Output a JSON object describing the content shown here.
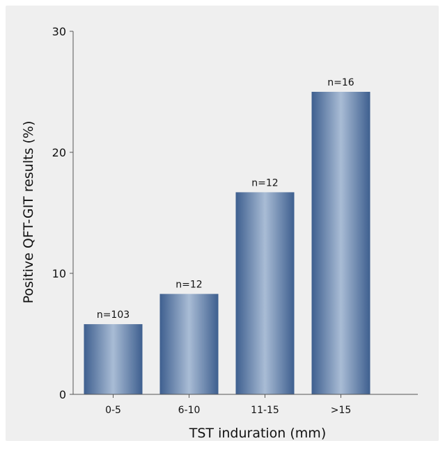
{
  "chart_data": {
    "type": "bar",
    "categories": [
      "0-5",
      "6-10",
      "11-15",
      ">15"
    ],
    "values": [
      5.8,
      8.3,
      16.7,
      25.0
    ],
    "data_labels": [
      "n=103",
      "n=12",
      "n=12",
      "n=16"
    ],
    "title": "",
    "xlabel": "TST induration (mm)",
    "ylabel": "Positive QFT-GIT results (%)",
    "ylim": [
      0,
      30
    ],
    "yticks": [
      0,
      10,
      20,
      30
    ],
    "grid": false,
    "legend": "none"
  },
  "colors": {
    "panel_background": "#efefef",
    "bar_edge": "#3e5f8f",
    "bar_center": "#a9bcd5",
    "axis": "#555555"
  }
}
